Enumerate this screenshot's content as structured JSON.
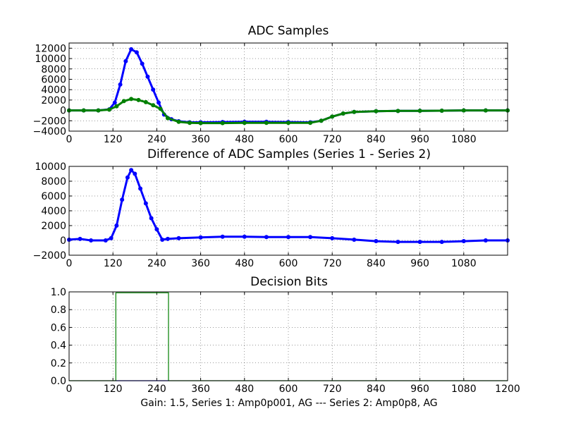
{
  "chart_data": [
    {
      "type": "scatter",
      "title": "ADC Samples",
      "xlim": [
        0,
        1200
      ],
      "ylim": [
        -4000,
        13000
      ],
      "xticks": [
        0,
        120,
        240,
        360,
        480,
        600,
        720,
        840,
        960,
        1080
      ],
      "xtick_labels": [
        "0",
        "120",
        "240",
        "360",
        "480",
        "600",
        "720",
        "840",
        "960",
        "1080"
      ],
      "yticks": [
        -4000,
        -2000,
        0,
        2000,
        4000,
        6000,
        8000,
        10000,
        12000
      ],
      "ytick_labels": [
        "−4000",
        "−2000",
        "0",
        "2000",
        "4000",
        "6000",
        "8000",
        "10000",
        "12000"
      ],
      "grid": true,
      "series": [
        {
          "color": "#0000ff",
          "x": [
            0,
            40,
            80,
            110,
            125,
            140,
            155,
            170,
            185,
            200,
            215,
            230,
            245,
            260,
            280,
            300,
            330,
            360,
            420,
            480,
            540,
            600,
            660,
            690,
            720,
            750,
            780,
            840,
            900,
            960,
            1020,
            1080,
            1140,
            1200
          ],
          "y": [
            0,
            0,
            0,
            200,
            1500,
            5000,
            9500,
            11800,
            11200,
            9000,
            6500,
            4000,
            1500,
            -800,
            -1700,
            -2100,
            -2300,
            -2300,
            -2250,
            -2200,
            -2200,
            -2250,
            -2300,
            -2000,
            -1200,
            -600,
            -300,
            -150,
            -100,
            -80,
            -50,
            0,
            0,
            0
          ]
        },
        {
          "color": "#008000",
          "x": [
            0,
            40,
            80,
            110,
            130,
            150,
            170,
            190,
            210,
            230,
            250,
            270,
            300,
            330,
            360,
            420,
            480,
            540,
            600,
            660,
            690,
            720,
            750,
            780,
            840,
            900,
            960,
            1020,
            1080,
            1140,
            1200
          ],
          "y": [
            0,
            0,
            0,
            150,
            800,
            1800,
            2200,
            2000,
            1600,
            1000,
            300,
            -1500,
            -2200,
            -2400,
            -2450,
            -2450,
            -2400,
            -2400,
            -2400,
            -2400,
            -2000,
            -1200,
            -600,
            -300,
            -150,
            -100,
            -80,
            -50,
            0,
            0,
            0
          ]
        }
      ]
    },
    {
      "type": "scatter",
      "title": "Difference of ADC Samples (Series 1 - Series 2)",
      "xlim": [
        0,
        1200
      ],
      "ylim": [
        -2000,
        10000
      ],
      "xticks": [
        0,
        120,
        240,
        360,
        480,
        600,
        720,
        840,
        960,
        1080
      ],
      "xtick_labels": [
        "0",
        "120",
        "240",
        "360",
        "480",
        "600",
        "720",
        "840",
        "960",
        "1080"
      ],
      "yticks": [
        -2000,
        0,
        2000,
        4000,
        6000,
        8000,
        10000
      ],
      "ytick_labels": [
        "−2000",
        "0",
        "2000",
        "4000",
        "6000",
        "8000",
        "10000"
      ],
      "grid": true,
      "series": [
        {
          "color": "#0000ff",
          "x": [
            0,
            30,
            60,
            100,
            115,
            130,
            145,
            160,
            170,
            180,
            195,
            210,
            225,
            240,
            255,
            270,
            300,
            360,
            420,
            480,
            540,
            600,
            660,
            720,
            780,
            840,
            900,
            960,
            1020,
            1080,
            1140,
            1200
          ],
          "y": [
            100,
            200,
            0,
            0,
            300,
            2000,
            5500,
            8500,
            9500,
            9000,
            7000,
            5000,
            3000,
            1500,
            100,
            200,
            300,
            400,
            500,
            500,
            450,
            450,
            450,
            300,
            100,
            -100,
            -200,
            -200,
            -200,
            -100,
            0,
            0
          ]
        }
      ]
    },
    {
      "type": "line",
      "title": "Decision Bits",
      "xlabel": "Gain: 1.5, Series 1: Amp0p001, AG --- Series 2: Amp0p8, AG",
      "xlim": [
        0,
        1200
      ],
      "ylim": [
        0,
        1
      ],
      "xticks": [
        0,
        120,
        240,
        360,
        480,
        600,
        720,
        840,
        960,
        1080,
        1200
      ],
      "xtick_labels": [
        "0",
        "120",
        "240",
        "360",
        "480",
        "600",
        "720",
        "840",
        "960",
        "1080",
        "1200"
      ],
      "yticks": [
        0,
        0.2,
        0.4,
        0.6,
        0.8,
        1.0
      ],
      "ytick_labels": [
        "0.0",
        "0.2",
        "0.4",
        "0.6",
        "0.8",
        "1.0"
      ],
      "grid": true,
      "series": [
        {
          "color": "#008000",
          "x": [
            0,
            128,
            128,
            272,
            272,
            1200
          ],
          "y": [
            0,
            0,
            0.99,
            0.99,
            0,
            0
          ]
        },
        {
          "color": "#0000ff",
          "x": [
            128,
            272
          ],
          "y": [
            0,
            0
          ]
        }
      ]
    }
  ]
}
